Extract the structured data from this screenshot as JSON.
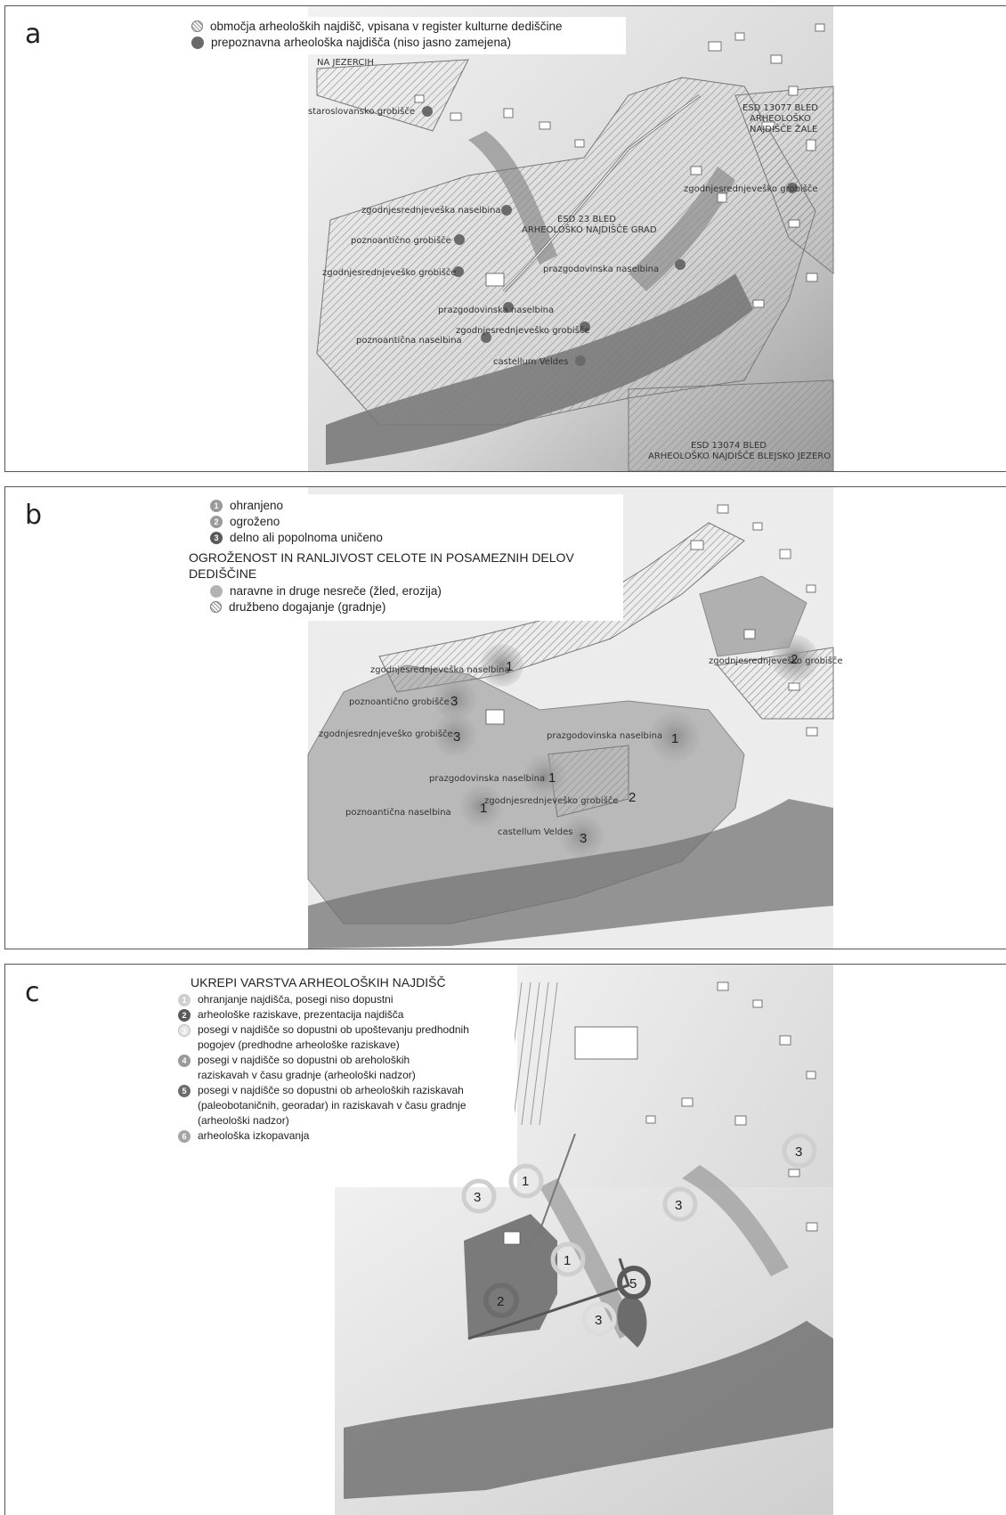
{
  "panel_a": {
    "letter": "a",
    "legend": [
      {
        "text": "območja arheoloških najdišč, vpisana v register kulturne dediščine",
        "icon": "hatched-circle-icon"
      },
      {
        "text": "prepoznavna arheološka najdišča (niso jasno zamejena)",
        "icon": "dark-dot-icon"
      }
    ],
    "labels": {
      "na_jezercih": "NA JEZERCIH",
      "staroslovansko": "staroslovansko grobišče",
      "esd13077": "ESD 13077 BLED",
      "esd13077_b": "ARHEOLOŠKO",
      "esd13077_c": "NAJDIŠČE ŽALE",
      "zgodnjesrednjevesko_right": "zgodnjesrednjeveško grobišče",
      "esd23": "ESD 23 BLED",
      "esd23_b": "ARHEOLOŠKO NAJDIŠČE GRAD",
      "zgodnjesrednjeveska_naselbina": "zgodnjesrednjeveška naselbina",
      "poznoanticno_grobisce": "poznoantično grobišče",
      "zgodnjesrednjevesko_grobisce": "zgodnjesrednjeveško grobišče",
      "prazgodovinska_naselbina_1": "prazgodovinska naselbina",
      "prazgodovinska_naselbina_2": "prazgodovinska naselbina",
      "zgodnjesrednjevesko_grobisce_2": "zgodnjesrednjeveško grobišče",
      "poznoanticna_naselbina": "poznoantična naselbina",
      "castellum": "castellum Veldes",
      "esd13074": "ESD 13074 BLED",
      "esd13074_b": "ARHEOLOŠKO NAJDIŠČE BLEJSKO JEZERO"
    }
  },
  "panel_b": {
    "letter": "b",
    "legend_top": [
      {
        "num": "1",
        "text": "ohranjeno"
      },
      {
        "num": "2",
        "text": "ogroženo"
      },
      {
        "num": "3",
        "text": "delno ali popolnoma uničeno"
      }
    ],
    "heading": "OGROŽENOST IN RANLJIVOST CELOTE IN POSAMEZNIH DELOV DEDIŠČINE",
    "legend_bottom": [
      {
        "text": "naravne in druge nesreče (žled, erozija)",
        "icon": "grey-circle-icon"
      },
      {
        "text": "družbeno dogajanje (gradnje)",
        "icon": "hatched-circle-icon"
      }
    ],
    "labels": {
      "zgodnjesrednjevesko_right": "zgodnjesrednjeveško grobišče",
      "zgodnjesrednjeveska_naselbina": "zgodnjesrednjeveška naselbina",
      "poznoanticno_grobisce": "poznoantično grobišče",
      "zgodnjesrednjevesko_grobisce": "zgodnjesrednjeveško grobišče",
      "prazgodovinska_naselbina_1": "prazgodovinska naselbina",
      "prazgodovinska_naselbina_2": "prazgodovinska naselbina",
      "zgodnjesrednjevesko_grobisce_2": "zgodnjesrednjeveško grobišče",
      "poznoanticna_naselbina": "poznoantična naselbina",
      "castellum": "castellum Veldes"
    },
    "numbers": {
      "n_naselbina": "1",
      "n_poznoanticno": "3",
      "n_zgodnje_grob": "3",
      "n_prazg_right": "1",
      "n_prazg_mid": "1",
      "n_poznoanticna": "1",
      "n_grob2": "2",
      "n_castellum": "3",
      "n_right": "2"
    }
  },
  "panel_c": {
    "letter": "c",
    "heading": "UKREPI VARSTVA ARHEOLOŠKIH NAJDIŠČ",
    "legend": [
      {
        "num": "1",
        "lines": [
          "ohranjanje najdišča, posegi niso dopustni"
        ]
      },
      {
        "num": "2",
        "lines": [
          "arheološke raziskave, prezentacija najdišča"
        ]
      },
      {
        "num": "3",
        "lines": [
          "posegi v najdišče so dopustni ob upoštevanju predhodnih",
          "pogojev (predhodne arheološke raziskave)"
        ]
      },
      {
        "num": "4",
        "lines": [
          "posegi v najdišče so dopustni ob areholoških",
          "raziskavah v času gradnje (arheološki nadzor)"
        ]
      },
      {
        "num": "5",
        "lines": [
          "posegi v najdišče so dopustni ob arheoloških raziskavah",
          "(paleobotaničnih, georadar) in raziskavah v času gradnje",
          "(arheološki nadzor)"
        ]
      },
      {
        "num": "6",
        "lines": [
          "arheološka izkopavanja"
        ]
      }
    ],
    "numbers": {
      "c1_top": "1",
      "c3_left": "3",
      "c3_right": "3",
      "c3_far": "3",
      "c1_mid": "1",
      "c2": "2",
      "c5": "5",
      "c3_bottom": "3"
    }
  },
  "colors": {
    "map_bg": "#e8e8e8",
    "hatch": "#8a8a8a",
    "dot": "#6a6a6a",
    "threat": "#a9a9a9",
    "ring1": "#cfcfcf",
    "ring2": "#6d6d6d",
    "ring3": "#dcdcdc"
  }
}
